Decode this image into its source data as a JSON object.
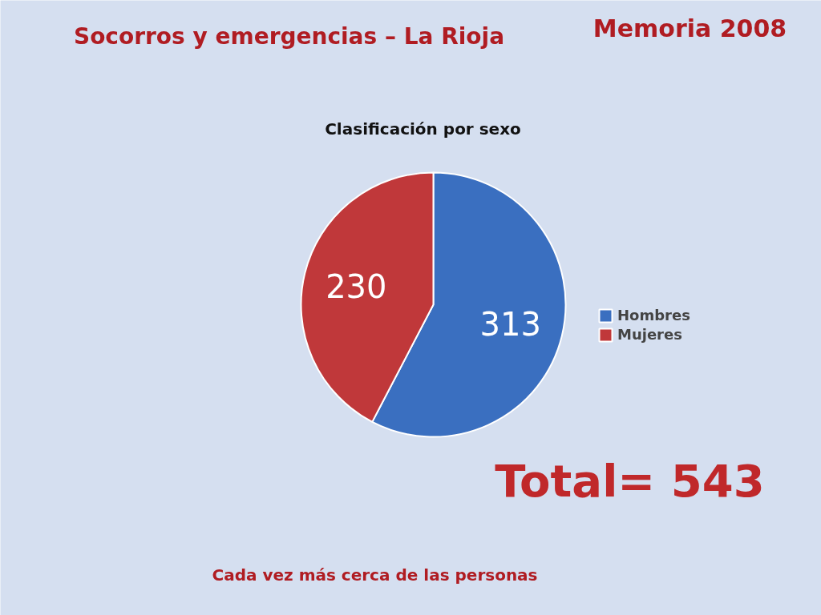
{
  "chart_data": {
    "type": "pie",
    "title": "Socorros y emergencias – La Rioja",
    "subtitle": "Clasificación por sexo",
    "categories": [
      "Hombres",
      "Mujeres"
    ],
    "values": [
      313,
      230
    ],
    "colors": [
      "#3a6fc0",
      "#c0383a"
    ],
    "data_labels": true,
    "legend": "right",
    "annotations": [
      "Memoria 2008",
      "Total= 543",
      "Cada vez más cerca de las personas"
    ]
  }
}
